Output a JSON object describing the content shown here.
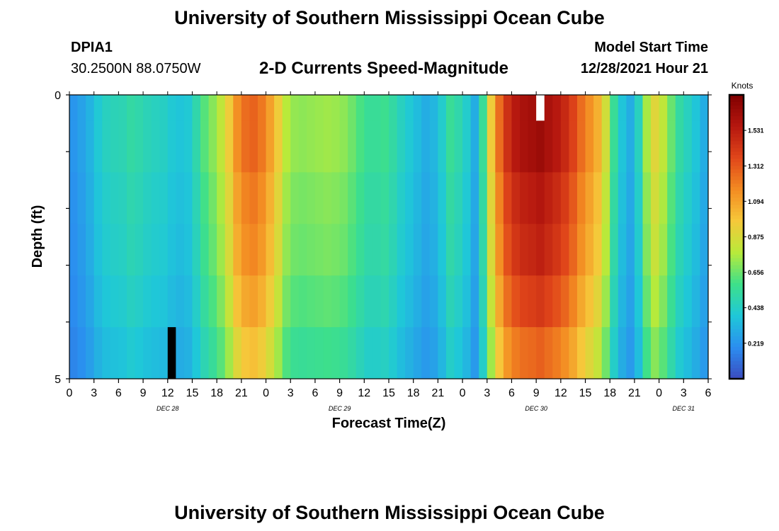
{
  "header": {
    "title": "University of Southern Mississippi Ocean Cube",
    "station_id": "DPIA1",
    "coordinates": "30.2500N  88.0750W",
    "subtitle": "2-D Currents Speed-Magnitude",
    "model_label": "Model Start Time",
    "model_time": "12/28/2021 Hour 21"
  },
  "footer": {
    "title": "University of Southern Mississippi Ocean Cube"
  },
  "colors": {
    "ramp": [
      "#3b4cc0",
      "#2b8ef0",
      "#1fc8d8",
      "#3ee08a",
      "#b8ea3a",
      "#f6c83a",
      "#f38b22",
      "#e0461a",
      "#b5170f",
      "#800000"
    ]
  },
  "chart_data": {
    "type": "heatmap",
    "xlabel": "Forecast Time(Z)",
    "ylabel": "Depth (ft)",
    "ylim": [
      0,
      5
    ],
    "y_tick_labels": [
      "0",
      "5"
    ],
    "y_ticks_minor": [
      1,
      2,
      3,
      4
    ],
    "x_range_hours": [
      0,
      78
    ],
    "x_tick_labels": [
      "0",
      "3",
      "6",
      "9",
      "12",
      "15",
      "18",
      "21",
      "0",
      "3",
      "6",
      "9",
      "12",
      "15",
      "18",
      "21",
      "0",
      "3",
      "6",
      "9",
      "12",
      "15",
      "18",
      "21",
      "0",
      "3",
      "6"
    ],
    "date_labels": [
      {
        "label": "DEC 28",
        "hour": 12
      },
      {
        "label": "DEC 29",
        "hour": 33
      },
      {
        "label": "DEC 30",
        "hour": 57
      },
      {
        "label": "DEC 31",
        "hour": 75
      }
    ],
    "colorbar": {
      "unit": "Knots",
      "ticks": [
        "0.219",
        "0.438",
        "0.656",
        "0.875",
        "1.094",
        "1.312",
        "1.531"
      ],
      "range": [
        0,
        1.75
      ]
    },
    "depth_levels": [
      0,
      1,
      2,
      3,
      4,
      5
    ],
    "surface_speed_by_hour": [
      0.22,
      0.26,
      0.32,
      0.4,
      0.45,
      0.47,
      0.48,
      0.52,
      0.5,
      0.47,
      0.45,
      0.44,
      0.4,
      0.38,
      0.4,
      0.5,
      0.62,
      0.7,
      0.8,
      0.95,
      1.15,
      1.25,
      1.28,
      1.22,
      1.1,
      0.95,
      0.78,
      0.72,
      0.71,
      0.72,
      0.73,
      0.74,
      0.73,
      0.71,
      0.66,
      0.6,
      0.55,
      0.55,
      0.57,
      0.52,
      0.45,
      0.4,
      0.35,
      0.3,
      0.33,
      0.42,
      0.55,
      0.5,
      0.42,
      0.3,
      0.55,
      0.95,
      1.25,
      1.45,
      1.55,
      1.6,
      1.62,
      1.65,
      1.6,
      1.55,
      1.48,
      1.38,
      1.25,
      1.15,
      1.05,
      0.85,
      0.55,
      0.38,
      0.3,
      0.45,
      0.75,
      0.9,
      0.8,
      0.65,
      0.52,
      0.45,
      0.38,
      0.3
    ],
    "depth_factor": [
      1.0,
      1.0,
      0.95,
      0.92,
      0.86,
      0.78
    ],
    "missing_cells": [
      {
        "hour": 12,
        "depth_index": 5,
        "value": "min"
      },
      {
        "hour": 57,
        "depth_index": 0,
        "value": "max"
      }
    ]
  }
}
